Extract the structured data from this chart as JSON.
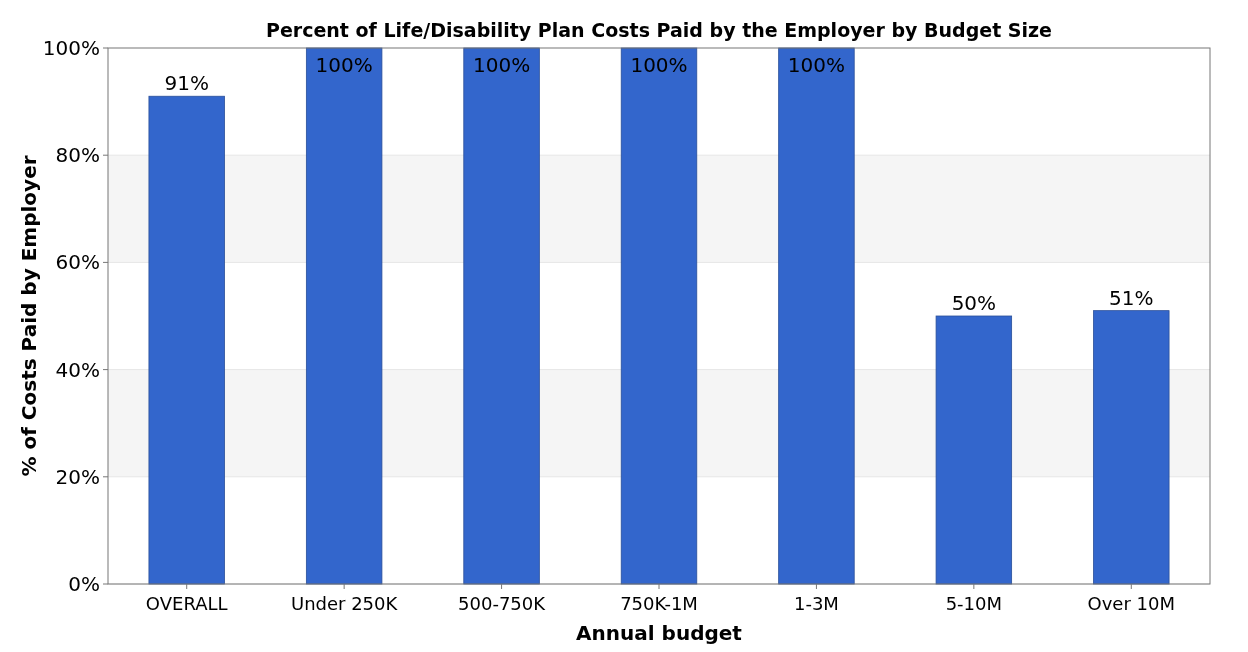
{
  "chart_data": {
    "type": "bar",
    "title": "Percent of Life/Disability Plan Costs Paid by the Employer by Budget Size",
    "xlabel": "Annual budget",
    "ylabel": "% of Costs Paid by Employer",
    "categories": [
      "OVERALL",
      "Under 250K",
      "500-750K",
      "750K-1M",
      "1-3M",
      "5-10M",
      "Over 10M"
    ],
    "values": [
      91,
      100,
      100,
      100,
      100,
      50,
      51
    ],
    "color": "#3366cc",
    "value_labels": [
      "91%",
      "100%",
      "100%",
      "100%",
      "100%",
      "50%",
      "51%"
    ],
    "ylim": [
      0,
      100
    ],
    "yticks": [
      {
        "value": 0,
        "label": "0%"
      },
      {
        "value": 20,
        "label": "20%"
      },
      {
        "value": 40,
        "label": "40%"
      },
      {
        "value": 60,
        "label": "60%"
      },
      {
        "value": 80,
        "label": "80%"
      },
      {
        "value": 100,
        "label": "100%"
      }
    ],
    "grid": "y"
  }
}
